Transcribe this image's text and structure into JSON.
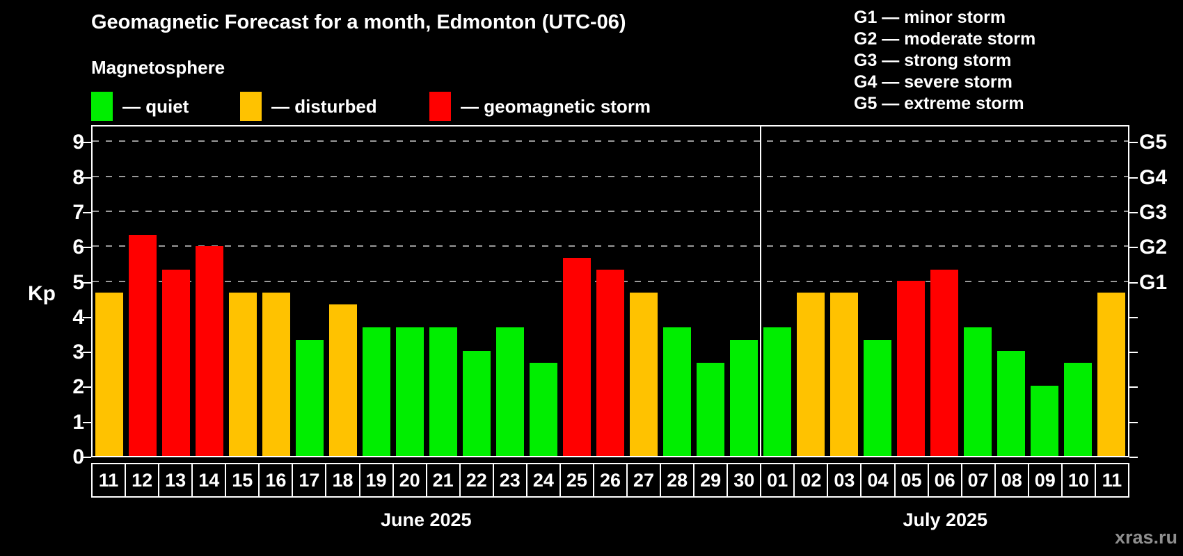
{
  "header": {
    "title": "Geomagnetic Forecast for a month, Edmonton (UTC-06)",
    "subtitle": "Magnetosphere"
  },
  "legend": {
    "items": [
      {
        "key": "quiet",
        "label": "— quiet",
        "color": "#00ee00"
      },
      {
        "key": "disturbed",
        "label": "— disturbed",
        "color": "#ffc200"
      },
      {
        "key": "storm",
        "label": "— geomagnetic storm",
        "color": "#ff0000"
      }
    ]
  },
  "g_legend": [
    "G1 — minor storm",
    "G2 — moderate storm",
    "G3 — strong storm",
    "G4 — severe storm",
    "G5 — extreme storm"
  ],
  "watermark": "xras.ru",
  "chart_data": {
    "type": "bar",
    "title": "Geomagnetic Forecast for a month, Edmonton (UTC-06)",
    "ylabel": "Kp",
    "ylim": [
      0,
      9.4
    ],
    "yticks": [
      0,
      1,
      2,
      3,
      4,
      5,
      6,
      7,
      8,
      9
    ],
    "gridlines_at": [
      5,
      6,
      7,
      8,
      9
    ],
    "grid": "dashed horizontal at storm levels only",
    "right_axis_labels": {
      "5": "G1",
      "6": "G2",
      "7": "G3",
      "8": "G4",
      "9": "G5"
    },
    "legend_position": "top-left",
    "months": [
      {
        "label": "June 2025",
        "days": 20
      },
      {
        "label": "July 2025",
        "days": 11
      }
    ],
    "month_split_index": 20,
    "categories": [
      "11",
      "12",
      "13",
      "14",
      "15",
      "16",
      "17",
      "18",
      "19",
      "20",
      "21",
      "22",
      "23",
      "24",
      "25",
      "26",
      "27",
      "28",
      "29",
      "30",
      "01",
      "02",
      "03",
      "04",
      "05",
      "06",
      "07",
      "08",
      "09",
      "10",
      "11"
    ],
    "series": [
      {
        "name": "Kp forecast",
        "values": [
          4.67,
          6.33,
          5.33,
          6.0,
          4.67,
          4.67,
          3.33,
          4.33,
          3.67,
          3.67,
          3.67,
          3.0,
          3.67,
          2.67,
          5.67,
          5.33,
          4.67,
          3.67,
          2.67,
          3.33,
          3.67,
          4.67,
          4.67,
          3.33,
          5.0,
          5.33,
          3.67,
          3.0,
          2.0,
          2.67,
          4.67
        ]
      }
    ],
    "statuses": [
      "disturbed",
      "storm",
      "storm",
      "storm",
      "disturbed",
      "disturbed",
      "quiet",
      "disturbed",
      "quiet",
      "quiet",
      "quiet",
      "quiet",
      "quiet",
      "quiet",
      "storm",
      "storm",
      "disturbed",
      "quiet",
      "quiet",
      "quiet",
      "quiet",
      "disturbed",
      "disturbed",
      "quiet",
      "storm",
      "storm",
      "quiet",
      "quiet",
      "quiet",
      "quiet",
      "disturbed"
    ],
    "colors": {
      "quiet": "#00ee00",
      "disturbed": "#ffc200",
      "storm": "#ff0000"
    }
  }
}
